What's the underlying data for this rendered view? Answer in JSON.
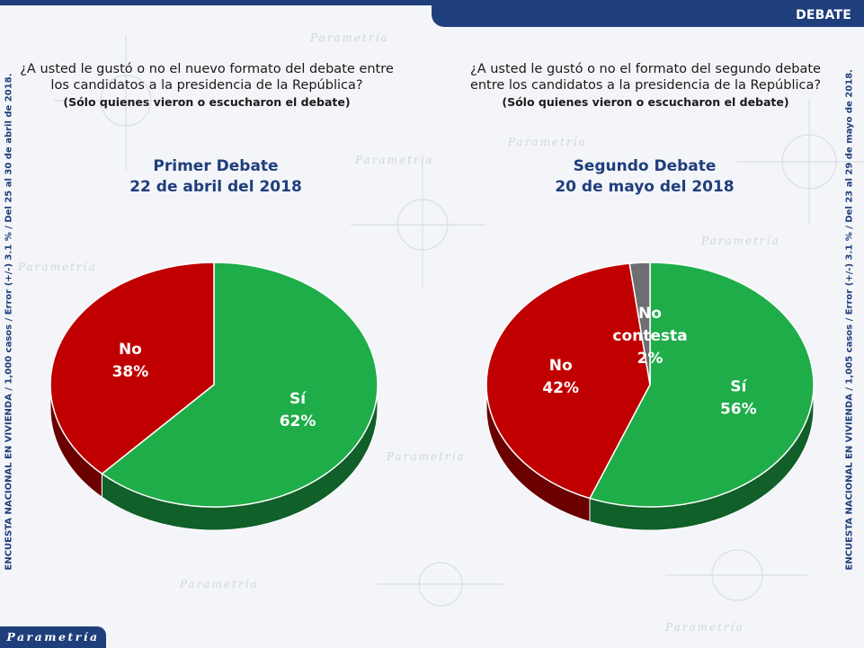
{
  "header": {
    "section_label": "DEBATE"
  },
  "sidebar": {
    "left_text": "ENCUESTA NACIONAL EN VIVIENDA / 1,000 casos / Error (+/-) 3.1 % / Del 25 al 30 de abril de 2018.",
    "right_text": "ENCUESTA NACIONAL EN VIVIENDA / 1,005 casos / Error (+/-) 3.1 % / Del 23 al 29 de mayo de 2018."
  },
  "footer": {
    "logo_text": "Parametría"
  },
  "questions": [
    {
      "text_line1": "¿A usted le gustó o no el nuevo formato del debate entre",
      "text_line2": "los candidatos a la presidencia de la República?",
      "note": "(Sólo quienes vieron o escucharon el debate)"
    },
    {
      "text_line1": "¿A usted le gustó o no el formato del segundo debate",
      "text_line2": "entre los candidatos a la presidencia de la República?",
      "note": "(Sólo quienes vieron o escucharon el debate)"
    }
  ],
  "chart_data": [
    {
      "type": "pie",
      "title": "Primer Debate",
      "subtitle": "22 de abril del 2018",
      "slices": [
        {
          "label": "Sí",
          "value": 62,
          "color": "#1fad4a"
        },
        {
          "label": "No",
          "value": 38,
          "color": "#c00000"
        }
      ]
    },
    {
      "type": "pie",
      "title": "Segundo Debate",
      "subtitle": "20 de mayo del 2018",
      "slices": [
        {
          "label": "Sí",
          "value": 56,
          "color": "#1fad4a"
        },
        {
          "label": "No",
          "value": 42,
          "color": "#c00000"
        },
        {
          "label": "No contesta",
          "value": 2,
          "color": "#6d6e71"
        }
      ]
    }
  ]
}
